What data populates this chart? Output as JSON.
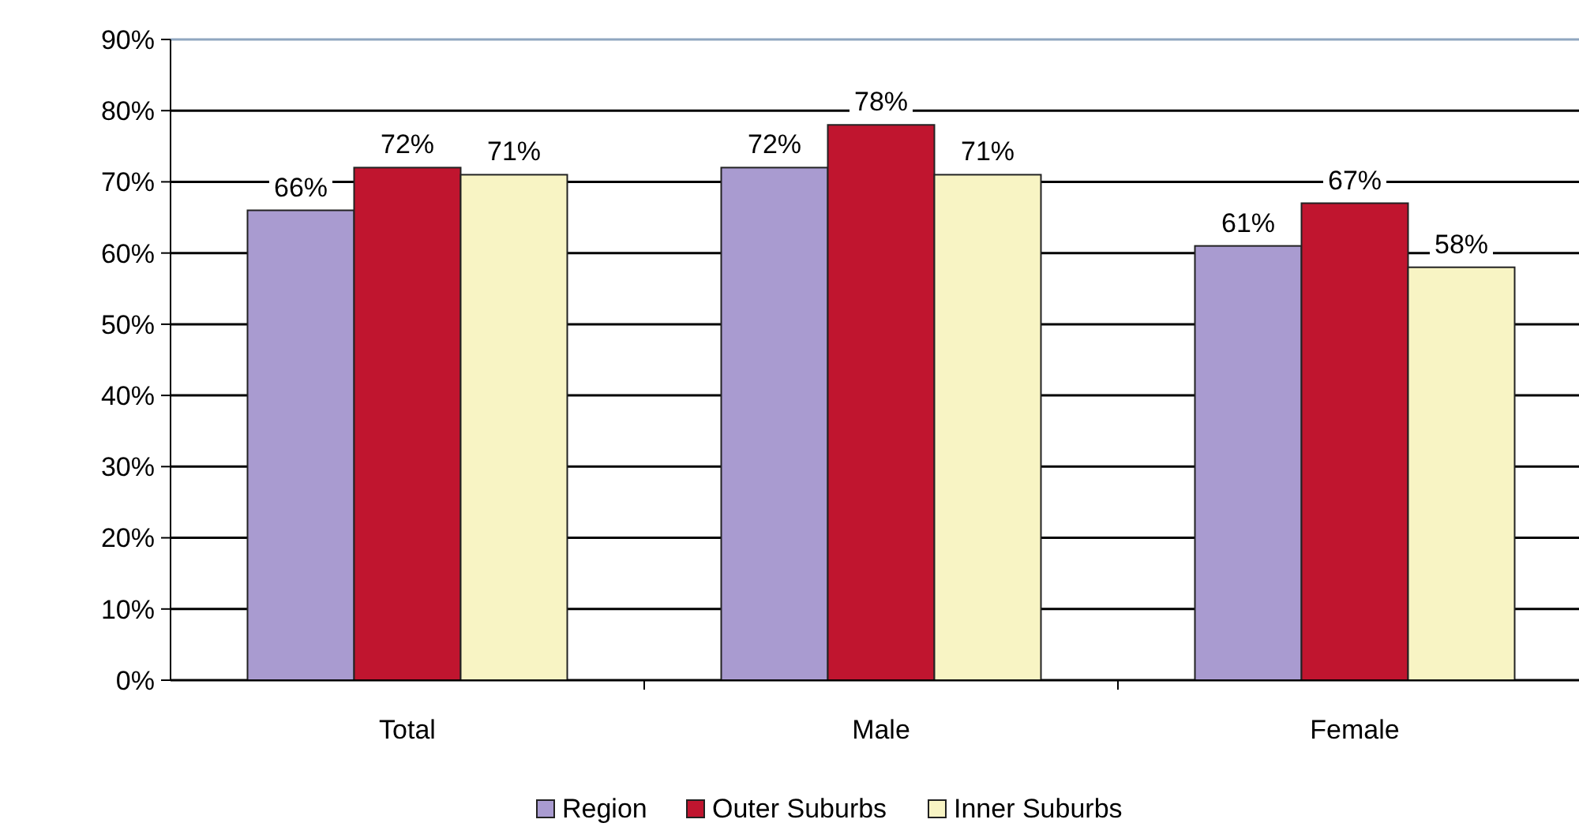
{
  "chart_data": {
    "type": "bar",
    "categories": [
      "Total",
      "Male",
      "Female"
    ],
    "series": [
      {
        "name": "Region",
        "color": "#a99bd0",
        "values": [
          66,
          72,
          61
        ],
        "value_labels": [
          "66%",
          "72%",
          "61%"
        ]
      },
      {
        "name": "Outer Suburbs",
        "color": "#c0152f",
        "values": [
          72,
          78,
          67
        ],
        "value_labels": [
          "72%",
          "78%",
          "67%"
        ]
      },
      {
        "name": "Inner Suburbs",
        "color": "#f8f4c4",
        "values": [
          71,
          71,
          58
        ],
        "value_labels": [
          "71%",
          "71%",
          "58%"
        ]
      }
    ],
    "ylim": [
      0,
      90
    ],
    "yticks": [
      {
        "value": 0,
        "label": "0%"
      },
      {
        "value": 10,
        "label": "10%"
      },
      {
        "value": 20,
        "label": "20%"
      },
      {
        "value": 30,
        "label": "30%"
      },
      {
        "value": 40,
        "label": "40%"
      },
      {
        "value": 50,
        "label": "50%"
      },
      {
        "value": 60,
        "label": "60%"
      },
      {
        "value": 70,
        "label": "70%"
      },
      {
        "value": 80,
        "label": "80%"
      },
      {
        "value": 90,
        "label": "90%"
      }
    ],
    "grid": "y",
    "legend": "bottom"
  }
}
